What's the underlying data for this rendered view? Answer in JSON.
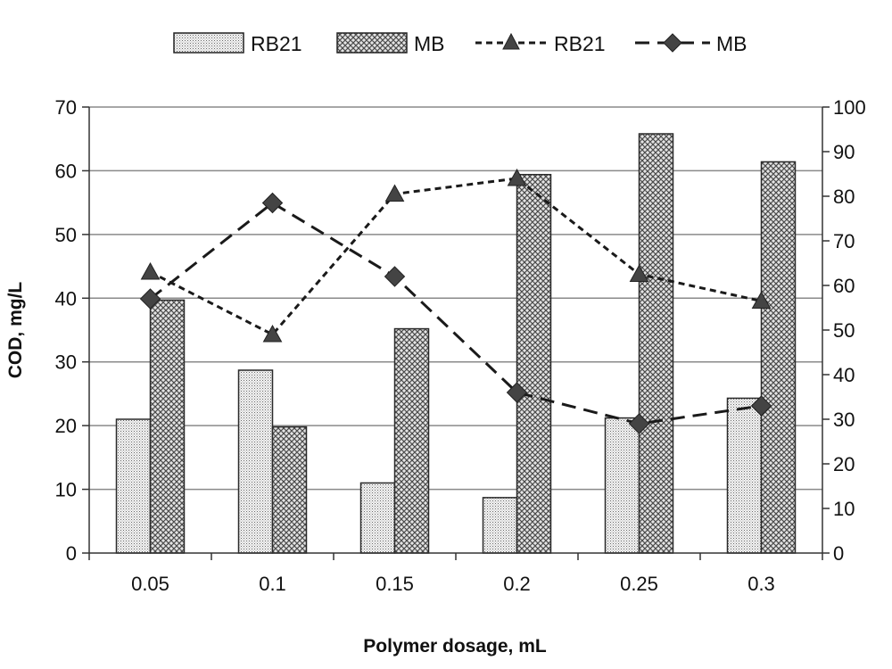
{
  "chart_data": {
    "type": "bar",
    "categories": [
      "0.05",
      "0.1",
      "0.15",
      "0.2",
      "0.25",
      "0.3"
    ],
    "xlabel": "Polymer dosage, mL",
    "ylabel": "COD, mg/L",
    "ylim": [
      0,
      70
    ],
    "yticks": [
      "0",
      "10",
      "20",
      "30",
      "40",
      "50",
      "60",
      "70"
    ],
    "y2lim": [
      0,
      100
    ],
    "y2ticks": [
      "0",
      "10",
      "20",
      "30",
      "40",
      "50",
      "60",
      "70",
      "80",
      "90",
      "100"
    ],
    "grid": "horizontal",
    "legend_position": "top",
    "series": [
      {
        "name": "RB21",
        "kind": "bar",
        "axis": "left",
        "pattern": "fine-dots",
        "values": [
          21,
          28.7,
          11,
          8.7,
          21.2,
          24.3
        ]
      },
      {
        "name": "MB",
        "kind": "bar",
        "axis": "left",
        "pattern": "crosshatch",
        "values": [
          39.7,
          19.8,
          35.2,
          59.4,
          65.8,
          61.4
        ]
      },
      {
        "name": "RB21",
        "kind": "line",
        "axis": "right",
        "style": "short-dash",
        "marker": "triangle",
        "values": [
          63,
          49,
          80.5,
          84,
          62.5,
          56.5
        ]
      },
      {
        "name": "MB",
        "kind": "line",
        "axis": "right",
        "style": "long-dash",
        "marker": "diamond",
        "values": [
          57,
          78.5,
          62,
          36,
          29,
          33
        ]
      }
    ],
    "colors": {
      "bar_fill": "#f2f2f2",
      "bar_hatch": "#5a5a5a",
      "line": "#1a1a1a",
      "grid": "#8a8a8a"
    }
  }
}
